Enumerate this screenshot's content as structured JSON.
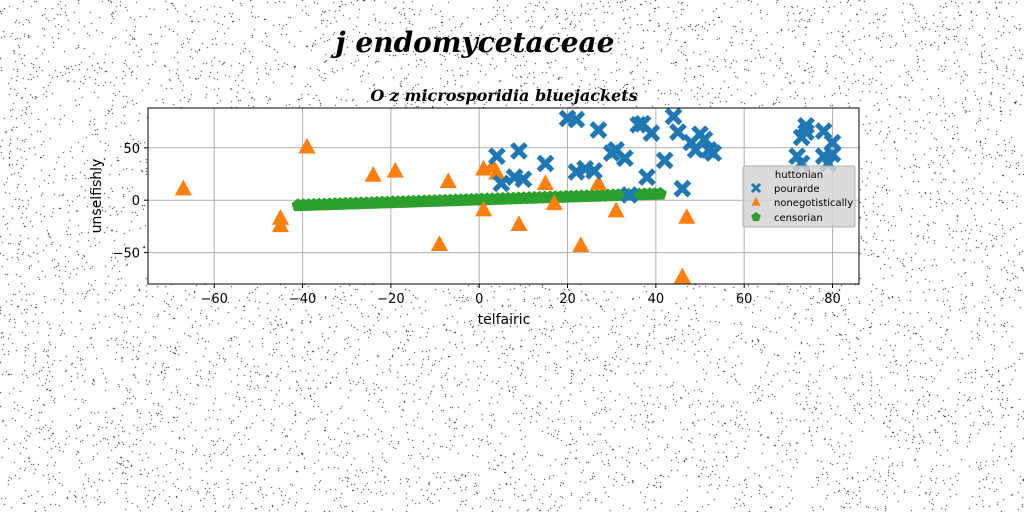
{
  "chart_data": {
    "type": "scatter",
    "suptitle": "j endomycetaceae",
    "title": "O z microsporidia bluejackets",
    "xlabel": "telfairic",
    "ylabel": "unselfishly",
    "xlim": [
      -75,
      86
    ],
    "ylim": [
      -80,
      88
    ],
    "xticks": [
      -60,
      -40,
      -20,
      0,
      20,
      40,
      60,
      80
    ],
    "yticks": [
      -50,
      0,
      50
    ],
    "grid": true,
    "legend": {
      "title": "huttonian",
      "placement": "right"
    },
    "series": [
      {
        "name": "pourarde",
        "marker": "x",
        "color": "#1f77b4",
        "points": [
          [
            4,
            42
          ],
          [
            5,
            16
          ],
          [
            8,
            22
          ],
          [
            9,
            47
          ],
          [
            10,
            20
          ],
          [
            15,
            35
          ],
          [
            20,
            78
          ],
          [
            22,
            77
          ],
          [
            22,
            27
          ],
          [
            24,
            30
          ],
          [
            26,
            28
          ],
          [
            27,
            67
          ],
          [
            30,
            45
          ],
          [
            31,
            48
          ],
          [
            33,
            40
          ],
          [
            34,
            5
          ],
          [
            36,
            72
          ],
          [
            37,
            73
          ],
          [
            38,
            22
          ],
          [
            39,
            64
          ],
          [
            42,
            38
          ],
          [
            44,
            80
          ],
          [
            45,
            65
          ],
          [
            46,
            11
          ],
          [
            48,
            55
          ],
          [
            49,
            48
          ],
          [
            50,
            63
          ],
          [
            51,
            58
          ],
          [
            52,
            48
          ],
          [
            53,
            45
          ],
          [
            72,
            42
          ],
          [
            73,
            35
          ],
          [
            73,
            60
          ],
          [
            74,
            71
          ],
          [
            74,
            65
          ],
          [
            78,
            66
          ],
          [
            78,
            42
          ],
          [
            79,
            35
          ],
          [
            80,
            55
          ],
          [
            80,
            44
          ]
        ]
      },
      {
        "name": "nonegotistically",
        "marker": "^",
        "color": "#ff7f0e",
        "points": [
          [
            -67,
            11
          ],
          [
            -45,
            -17
          ],
          [
            -45,
            -24
          ],
          [
            -39,
            51
          ],
          [
            -24,
            24
          ],
          [
            -19,
            28
          ],
          [
            -9,
            -42
          ],
          [
            -7,
            18
          ],
          [
            1,
            30
          ],
          [
            1,
            -9
          ],
          [
            3,
            33
          ],
          [
            4,
            26
          ],
          [
            9,
            -23
          ],
          [
            15,
            16
          ],
          [
            17,
            -3
          ],
          [
            23,
            -43
          ],
          [
            27,
            16
          ],
          [
            31,
            -10
          ],
          [
            46,
            -73
          ],
          [
            47,
            -16
          ]
        ]
      },
      {
        "name": "censorian",
        "marker": "p",
        "color": "#2ca02c",
        "x_start": -41,
        "x_end": 41,
        "count": 70,
        "y_start": -5,
        "y_end": 6
      }
    ]
  }
}
